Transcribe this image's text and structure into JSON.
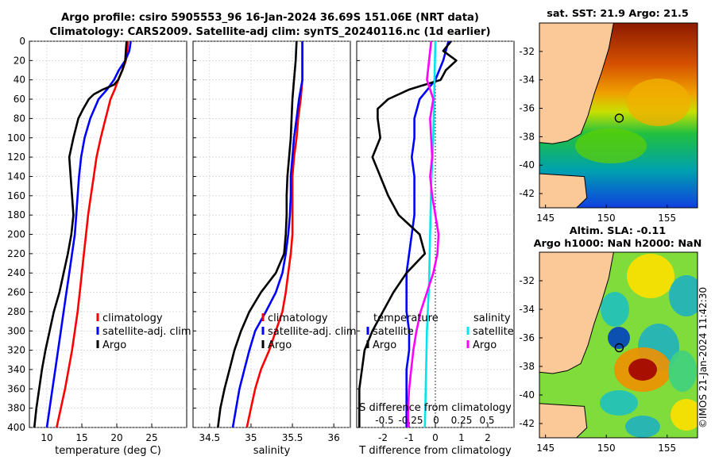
{
  "titles": {
    "line1": "Argo profile: csiro 5905553_96 16-Jan-2024 36.69S 151.06E (NRT data)",
    "line2": "Climatology: CARS2009. Satellite-adj clim: synTS_20240116.nc (1d earlier)",
    "sst_map": "sat. SST: 21.9 Argo: 21.5",
    "sla_map_line1": "Altim. SLA: -0.11",
    "sla_map_line2": "Argo h1000: NaN h2000: NaN"
  },
  "credit": "©IMOS 21-Jan-2024 11:42:30",
  "colors": {
    "climatology": "#ff0000",
    "satellite": "#0000ff",
    "argo": "#000000",
    "salinity_satellite": "#00e5ee",
    "salinity_argo": "#ff00ff"
  },
  "chart_data": [
    {
      "type": "line",
      "id": "temperature",
      "xlabel": "temperature (deg C)",
      "ylim": [
        400,
        0
      ],
      "xlim": [
        7.5,
        30
      ],
      "xticks": [
        10,
        15,
        20,
        25
      ],
      "yticks": [
        0,
        20,
        40,
        60,
        80,
        100,
        120,
        140,
        160,
        180,
        200,
        220,
        240,
        260,
        280,
        300,
        320,
        340,
        360,
        380,
        400
      ],
      "grid": true,
      "legend": {
        "position": "lower-right",
        "entries": [
          "climatology",
          "satellite-adj. clim",
          "Argo"
        ]
      },
      "series": [
        {
          "name": "climatology",
          "color": "#ff0000",
          "depth": [
            0,
            10,
            20,
            30,
            40,
            50,
            60,
            80,
            100,
            120,
            140,
            160,
            180,
            200,
            220,
            240,
            260,
            280,
            300,
            320,
            340,
            360,
            380,
            400
          ],
          "values": [
            21.6,
            21.5,
            21.3,
            20.8,
            20.2,
            19.7,
            19.1,
            18.4,
            17.7,
            17.1,
            16.7,
            16.3,
            15.9,
            15.6,
            15.3,
            15.0,
            14.7,
            14.4,
            14.0,
            13.6,
            13.1,
            12.6,
            12.0,
            11.4
          ]
        },
        {
          "name": "satellite-adj. clim",
          "color": "#0000ff",
          "depth": [
            0,
            10,
            20,
            30,
            40,
            50,
            60,
            80,
            100,
            120,
            140,
            160,
            180,
            200,
            220,
            240,
            260,
            280,
            300,
            320,
            340,
            360,
            380,
            400
          ],
          "values": [
            22.0,
            21.8,
            21.2,
            20.3,
            19.6,
            18.6,
            17.4,
            16.2,
            15.4,
            14.9,
            14.6,
            14.4,
            14.2,
            14.0,
            13.6,
            13.2,
            12.8,
            12.4,
            12.0,
            11.6,
            11.2,
            10.8,
            10.4,
            10.0
          ]
        },
        {
          "name": "Argo",
          "color": "#000000",
          "depth": [
            0,
            10,
            20,
            30,
            40,
            45,
            50,
            55,
            60,
            65,
            70,
            80,
            100,
            120,
            140,
            160,
            180,
            200,
            220,
            240,
            260,
            280,
            300,
            320,
            340,
            360,
            380,
            400
          ],
          "values": [
            21.4,
            21.3,
            21.2,
            20.8,
            20.2,
            19.6,
            18.0,
            16.7,
            16.0,
            15.6,
            15.2,
            14.5,
            13.8,
            13.2,
            13.4,
            13.6,
            13.8,
            13.5,
            13.0,
            12.4,
            11.8,
            11.0,
            10.4,
            9.8,
            9.3,
            8.9,
            8.5,
            8.2
          ]
        }
      ]
    },
    {
      "type": "line",
      "id": "salinity",
      "xlabel": "salinity",
      "ylim": [
        400,
        0
      ],
      "xlim": [
        34.3,
        36.2
      ],
      "xticks": [
        34.5,
        35,
        35.5,
        36
      ],
      "grid": true,
      "legend": {
        "position": "lower-right",
        "entries": [
          "climatology",
          "satellite-adj. clim",
          "Argo"
        ]
      },
      "series": [
        {
          "name": "climatology",
          "color": "#ff0000",
          "depth": [
            0,
            20,
            40,
            60,
            80,
            100,
            120,
            140,
            160,
            180,
            200,
            220,
            240,
            260,
            280,
            300,
            320,
            340,
            360,
            380,
            400
          ],
          "values": [
            35.62,
            35.62,
            35.62,
            35.6,
            35.57,
            35.55,
            35.52,
            35.5,
            35.5,
            35.5,
            35.5,
            35.48,
            35.45,
            35.42,
            35.38,
            35.3,
            35.22,
            35.12,
            35.05,
            35.0,
            34.95
          ]
        },
        {
          "name": "satellite-adj. clim",
          "color": "#0000ff",
          "depth": [
            0,
            20,
            40,
            60,
            80,
            100,
            120,
            140,
            160,
            180,
            200,
            220,
            240,
            260,
            280,
            300,
            320,
            340,
            360,
            380,
            400
          ],
          "values": [
            35.62,
            35.62,
            35.62,
            35.58,
            35.55,
            35.52,
            35.5,
            35.48,
            35.48,
            35.47,
            35.45,
            35.42,
            35.38,
            35.3,
            35.18,
            35.05,
            34.98,
            34.92,
            34.86,
            34.82,
            34.78
          ]
        },
        {
          "name": "Argo",
          "color": "#000000",
          "depth": [
            0,
            20,
            40,
            60,
            80,
            100,
            120,
            140,
            160,
            180,
            200,
            220,
            240,
            260,
            280,
            300,
            320,
            340,
            360,
            380,
            400
          ],
          "values": [
            35.55,
            35.54,
            35.52,
            35.5,
            35.49,
            35.48,
            35.46,
            35.44,
            35.43,
            35.43,
            35.42,
            35.4,
            35.3,
            35.12,
            34.98,
            34.88,
            34.8,
            34.74,
            34.68,
            34.63,
            34.6
          ]
        }
      ]
    },
    {
      "type": "line",
      "id": "difference",
      "xlabel": "T difference from climatology",
      "xlabel2": "S difference from climatology",
      "ylim": [
        400,
        0
      ],
      "xlim": [
        -3,
        3
      ],
      "xticks": [
        -2,
        -1,
        0,
        1,
        2
      ],
      "xticks_salinity": [
        "-0.5",
        "-0.25",
        "0",
        "0.25",
        "0.5"
      ],
      "grid": true,
      "legend": {
        "position": "lower-right",
        "headers": [
          "temperature",
          "salinity"
        ],
        "entries": [
          "satellite",
          "Argo",
          "satellite",
          "Argo"
        ]
      },
      "series": [
        {
          "name": "temperature satellite",
          "color": "#0000ff",
          "depth": [
            0,
            20,
            40,
            50,
            60,
            80,
            100,
            120,
            140,
            160,
            180,
            200,
            220,
            240,
            260,
            280,
            300,
            320,
            340,
            360,
            380,
            400
          ],
          "values": [
            0.5,
            0.3,
            0.0,
            -0.3,
            -0.6,
            -0.8,
            -0.8,
            -0.9,
            -0.8,
            -0.8,
            -0.8,
            -0.9,
            -1.0,
            -1.1,
            -1.1,
            -1.1,
            -1.0,
            -1.0,
            -1.1,
            -1.1,
            -1.1,
            -1.1
          ]
        },
        {
          "name": "temperature Argo",
          "color": "#000000",
          "depth": [
            0,
            10,
            20,
            30,
            40,
            50,
            60,
            70,
            80,
            100,
            120,
            140,
            160,
            180,
            200,
            220,
            240,
            260,
            280,
            300,
            320,
            340,
            360,
            380,
            400
          ],
          "values": [
            0.6,
            0.3,
            0.8,
            0.4,
            0.2,
            -1.0,
            -1.8,
            -2.2,
            -2.2,
            -2.1,
            -2.4,
            -2.1,
            -1.8,
            -1.4,
            -0.6,
            -0.4,
            -1.1,
            -1.6,
            -2.0,
            -2.4,
            -2.7,
            -2.8,
            -2.9,
            -2.9,
            -2.9
          ]
        },
        {
          "name": "salinity satellite",
          "color": "#00e5ee",
          "depth": [
            0,
            100,
            150,
            200,
            250,
            300,
            350,
            400
          ],
          "values": [
            0.0,
            -0.02,
            -0.04,
            -0.05,
            -0.06,
            -0.08,
            -0.09,
            -0.1
          ]
        },
        {
          "name": "salinity Argo",
          "color": "#ff00ff",
          "depth": [
            0,
            20,
            40,
            60,
            80,
            100,
            120,
            140,
            160,
            180,
            200,
            220,
            240,
            260,
            280,
            300,
            320,
            340,
            360,
            380,
            400
          ],
          "values": [
            -0.04,
            -0.06,
            -0.08,
            -0.02,
            -0.05,
            -0.04,
            -0.03,
            -0.05,
            -0.03,
            0.0,
            0.03,
            0.02,
            -0.02,
            -0.08,
            -0.14,
            -0.18,
            -0.21,
            -0.23,
            -0.25,
            -0.26,
            -0.26
          ]
        }
      ]
    },
    {
      "type": "heatmap",
      "id": "sst_map",
      "xticks": [
        145,
        150,
        155
      ],
      "yticks": [
        -32,
        -34,
        -36,
        -38,
        -40,
        -42
      ],
      "xlim": [
        144.5,
        157.5
      ],
      "ylim": [
        -43,
        -30
      ],
      "argo_position": {
        "lon": 151.06,
        "lat": -36.69
      }
    },
    {
      "type": "heatmap",
      "id": "sla_map",
      "xticks": [
        145,
        150,
        155
      ],
      "yticks": [
        -32,
        -34,
        -36,
        -38,
        -40,
        -42
      ],
      "xlim": [
        144.5,
        157.5
      ],
      "ylim": [
        -43,
        -30
      ],
      "argo_position": {
        "lon": 151.06,
        "lat": -36.69
      }
    }
  ]
}
